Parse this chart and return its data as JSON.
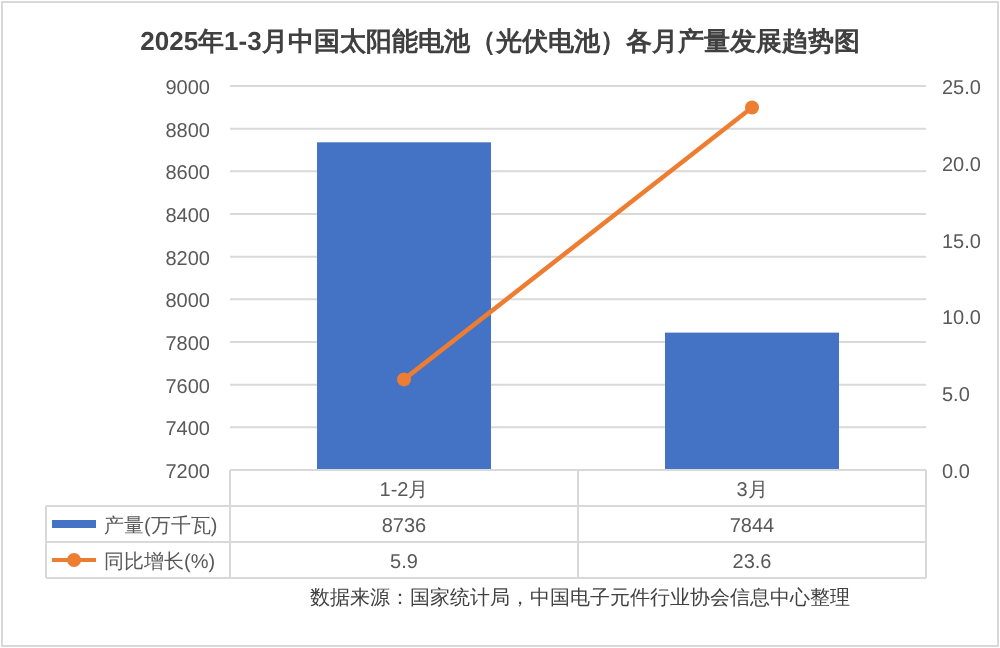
{
  "chart_data": {
    "type": "bar",
    "title": "2025年1-3月中国太阳能电池（光伏电池）各月产量发展趋势图",
    "categories": [
      "1-2月",
      "3月"
    ],
    "series": [
      {
        "name": "产量(万千瓦)",
        "color": "#4472c4",
        "values": [
          8736,
          7844
        ]
      },
      {
        "name": "同比增长(%)",
        "type": "line",
        "axis": "y2",
        "color": "#ed7d31",
        "values": [
          5.9,
          23.6
        ]
      }
    ],
    "ylim": [
      7200,
      9000
    ],
    "yticks": [
      7200,
      7400,
      7600,
      7800,
      8000,
      8200,
      8400,
      8600,
      8800,
      9000
    ],
    "y2lim": [
      0,
      25
    ],
    "y2ticks": [
      {
        "value": 0,
        "label": "0.0"
      },
      {
        "value": 5,
        "label": "5.0"
      },
      {
        "value": 10,
        "label": "10.0"
      },
      {
        "value": 15,
        "label": "15.0"
      },
      {
        "value": 20,
        "label": "20.0"
      },
      {
        "value": 25,
        "label": "25.0"
      }
    ],
    "grid": "y",
    "marker": "circle",
    "data_labels": true,
    "legend": "bottom",
    "annotations": [
      "数据来源：国家统计局，中国电子元件行业协会信息中心整理"
    ]
  }
}
